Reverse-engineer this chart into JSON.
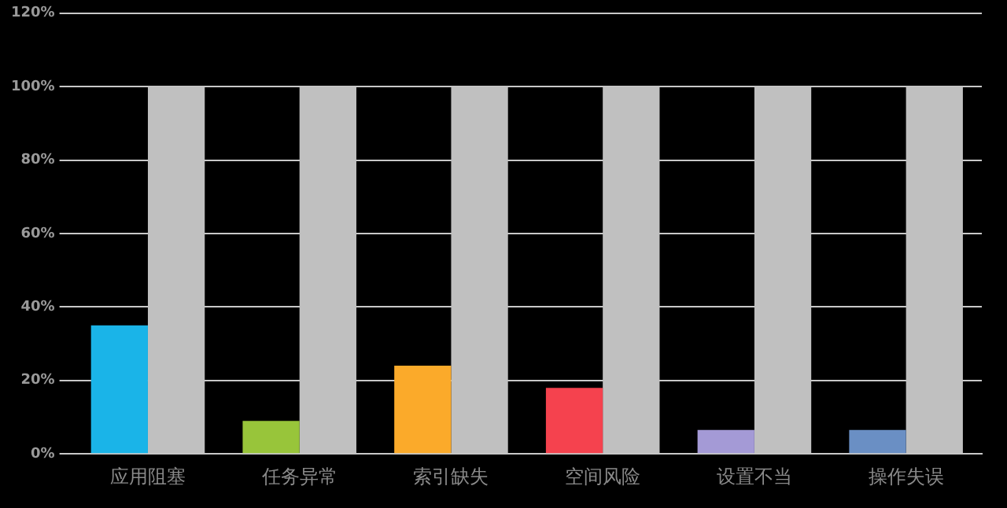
{
  "chart_data": {
    "type": "bar",
    "categories": [
      "应用阻塞",
      "任务异常",
      "索引缺失",
      "空间风险",
      "设置不当",
      "操作失误"
    ],
    "series": [
      {
        "colors": [
          "#1ab4e8",
          "#98c53a",
          "#fbaa2a",
          "#f5424e",
          "#a49ad6",
          "#6a8fc4"
        ],
        "values": [
          35,
          9,
          24,
          18,
          6.5,
          6.5
        ]
      },
      {
        "color": "#c0c0c0",
        "values": [
          100,
          100,
          100,
          100,
          100,
          100
        ]
      }
    ],
    "ylim": [
      0,
      120
    ],
    "yticks": [
      {
        "value": 0,
        "label": "0%"
      },
      {
        "value": 20,
        "label": "20%"
      },
      {
        "value": 40,
        "label": "40%"
      },
      {
        "value": 60,
        "label": "60%"
      },
      {
        "value": 80,
        "label": "80%"
      },
      {
        "value": 100,
        "label": "100%"
      },
      {
        "value": 120,
        "label": "120%"
      }
    ],
    "grid": "y",
    "legend": false
  }
}
